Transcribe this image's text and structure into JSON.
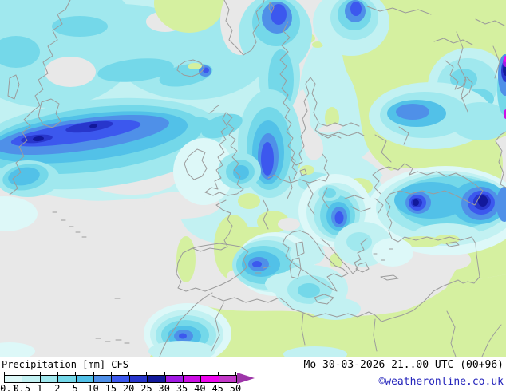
{
  "footer": {
    "title": "Precipitation [mm] CFS",
    "datetime": "Mo 30-03-2026 21..00 UTC (00+96)",
    "copyright": "©weatheronline.co.uk"
  },
  "legend": {
    "unit": "mm",
    "tick_labels": [
      "0.1",
      "0.5",
      "1",
      "2",
      "5",
      "10",
      "15",
      "20",
      "25",
      "30",
      "35",
      "40",
      "45",
      "50"
    ],
    "segment_colors": [
      "#ddf8f8",
      "#c2f1f2",
      "#a0e8ee",
      "#74d8e9",
      "#52c1e8",
      "#4f90e8",
      "#3c58ee",
      "#2836cc",
      "#12199b",
      "#a21ae4",
      "#cc0ee4",
      "#ee04ee",
      "#c338c8"
    ],
    "overflow_arrow_color": "#9d35a8"
  },
  "map": {
    "description": "CFS precipitation forecast map of Europe and the North Atlantic; heavy rain band over the mid-Atlantic, precipitation over Scandinavia, the Balkans, Turkey (two intense cores), Morocco and the western Mediterranean; trace precipitation (green) over eastern Europe, Russia and North Africa",
    "colors": {
      "no_precip": "#e8e8e8",
      "trace": "#d5f0a0",
      "coastline": "#9c9c9c"
    }
  }
}
